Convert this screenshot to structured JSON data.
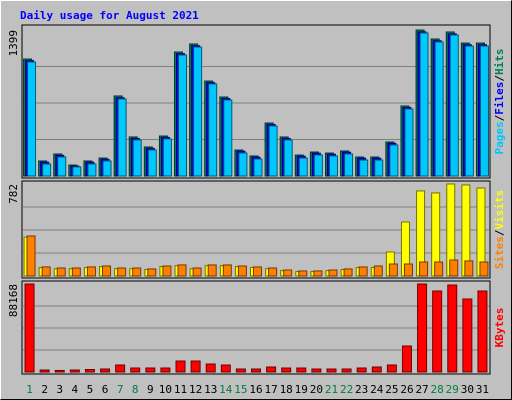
{
  "chart_data": [
    {
      "type": "bar",
      "title": "Daily usage for August 2021",
      "legend_separator": "/",
      "ylim": [
        0,
        1399
      ],
      "yticks": [
        1399
      ],
      "grid": true,
      "series": [
        {
          "name": "Hits",
          "color": "#00805c",
          "values": [
            1121,
            144,
            211,
            105,
            144,
            172,
            767,
            374,
            278,
            383,
            1188,
            1265,
            910,
            757,
            249,
            192,
            508,
            374,
            201,
            230,
            220,
            240,
            182,
            182,
            326,
            671,
            1399,
            1313,
            1380,
            1274,
            1274
          ]
        },
        {
          "name": "Files",
          "color": "#0000ff",
          "values": [
            1106,
            132,
            198,
            95,
            132,
            160,
            750,
            360,
            265,
            370,
            1172,
            1248,
            895,
            742,
            237,
            180,
            494,
            360,
            189,
            218,
            208,
            228,
            170,
            170,
            313,
            656,
            1381,
            1296,
            1362,
            1258,
            1258
          ]
        },
        {
          "name": "Pages",
          "color": "#00c8ff",
          "values": [
            1092,
            115,
            182,
            87,
            115,
            144,
            738,
            345,
            249,
            355,
            1159,
            1236,
            882,
            728,
            220,
            163,
            479,
            345,
            172,
            201,
            192,
            211,
            153,
            153,
            297,
            642,
            1370,
            1284,
            1351,
            1245,
            1245
          ]
        }
      ]
    },
    {
      "type": "bar",
      "legend_separator": "/",
      "ylim": [
        0,
        782
      ],
      "yticks": [
        782
      ],
      "grid": true,
      "series": [
        {
          "name": "Visits",
          "color": "#ffff00",
          "values": [
            330,
            72,
            62,
            62,
            72,
            80,
            62,
            62,
            55,
            80,
            88,
            62,
            88,
            88,
            80,
            72,
            62,
            46,
            38,
            38,
            46,
            55,
            72,
            72,
            204,
            459,
            723,
            706,
            782,
            774,
            748
          ]
        },
        {
          "name": "Sites",
          "color": "#ff8000",
          "values": [
            340,
            77,
            68,
            68,
            77,
            85,
            68,
            68,
            60,
            85,
            94,
            68,
            94,
            94,
            85,
            77,
            68,
            51,
            43,
            43,
            51,
            60,
            77,
            85,
            102,
            102,
            119,
            119,
            136,
            128,
            119
          ]
        }
      ]
    },
    {
      "type": "bar",
      "ylim": [
        0,
        88168
      ],
      "yticks": [
        88168
      ],
      "grid": true,
      "categories": [
        "1",
        "2",
        "3",
        "4",
        "5",
        "6",
        "7",
        "8",
        "9",
        "10",
        "11",
        "12",
        "13",
        "14",
        "15",
        "16",
        "17",
        "18",
        "19",
        "20",
        "21",
        "22",
        "23",
        "24",
        "25",
        "26",
        "27",
        "28",
        "29",
        "30",
        "31"
      ],
      "category_colors": [
        "#008040",
        "#000000",
        "#000000",
        "#000000",
        "#000000",
        "#000000",
        "#008040",
        "#008040",
        "#000000",
        "#000000",
        "#000000",
        "#000000",
        "#000000",
        "#008040",
        "#008040",
        "#000000",
        "#000000",
        "#000000",
        "#000000",
        "#000000",
        "#008040",
        "#008040",
        "#000000",
        "#000000",
        "#000000",
        "#000000",
        "#000000",
        "#008040",
        "#008040",
        "#000000",
        "#000000"
      ],
      "series": [
        {
          "name": "KBytes",
          "color": "#ff0000",
          "values": [
            88168,
            2004,
            1503,
            2004,
            2505,
            3006,
            7014,
            4008,
            4008,
            4008,
            11021,
            11021,
            8016,
            7014,
            3006,
            3006,
            5010,
            4008,
            4008,
            3006,
            3006,
            3006,
            4008,
            5010,
            7014,
            26050,
            88168,
            81154,
            87166,
            73140,
            81154
          ]
        }
      ]
    }
  ]
}
